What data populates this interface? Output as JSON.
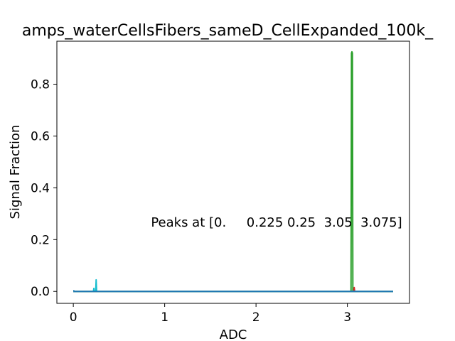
{
  "chart_data": {
    "type": "line",
    "title": "amps_waterCellsFibers_sameD_CellExpanded_100k_",
    "xlabel": "ADC",
    "ylabel": "Signal Fraction",
    "xlim": [
      -0.18,
      3.68
    ],
    "ylim": [
      -0.046,
      0.966
    ],
    "x_ticks": [
      0,
      1,
      2,
      3
    ],
    "y_ticks": [
      0.0,
      0.2,
      0.4,
      0.6,
      0.8
    ],
    "y_tick_labels": [
      "0.0",
      "0.2",
      "0.4",
      "0.6",
      "0.8"
    ],
    "grid": false,
    "annotation": {
      "text": "Peaks at [0.     0.225 0.25  3.05  3.075]",
      "x": 0.85,
      "y": 0.25
    },
    "series": [
      {
        "color": "#1f77b4",
        "x": [
          0,
          0.005,
          0.01,
          3.5
        ],
        "y": [
          0.003,
          0.003,
          0.0,
          0.0
        ]
      },
      {
        "color": "#ff7f0e",
        "x": [
          0,
          3.5
        ],
        "y": [
          0.0,
          0.0
        ]
      },
      {
        "color": "#2ca02c",
        "x": [
          0,
          3.04,
          3.045,
          3.05,
          3.055,
          3.06,
          3.5
        ],
        "y": [
          0.0,
          0.0,
          0.92,
          0.925,
          0.92,
          0.0,
          0.0
        ]
      },
      {
        "color": "#d62728",
        "x": [
          0,
          3.07,
          3.075,
          3.08,
          3.5
        ],
        "y": [
          0.0,
          0.0,
          0.015,
          0.0,
          0.0
        ]
      },
      {
        "color": "#9467bd",
        "x": [
          0,
          3.5
        ],
        "y": [
          0.0,
          0.0
        ]
      },
      {
        "color": "#8c564b",
        "x": [
          0,
          3.5
        ],
        "y": [
          0.0,
          0.0
        ]
      },
      {
        "color": "#e377c2",
        "x": [
          0,
          3.5
        ],
        "y": [
          0.0,
          0.0
        ]
      },
      {
        "color": "#7f7f7f",
        "x": [
          0,
          3.5
        ],
        "y": [
          0.0,
          0.0
        ]
      },
      {
        "color": "#bcbd22",
        "x": [
          0,
          3.5
        ],
        "y": [
          0.0,
          0.0
        ]
      },
      {
        "color": "#17becf",
        "x": [
          0,
          0.22,
          0.225,
          0.23,
          0.245,
          0.25,
          0.255,
          3.5
        ],
        "y": [
          0.0,
          0.0,
          0.012,
          0.0,
          0.0,
          0.045,
          0.0,
          0.0
        ]
      },
      {
        "color": "#1f77b4",
        "x": [
          0,
          3.5
        ],
        "y": [
          0.0,
          0.0
        ]
      }
    ]
  }
}
